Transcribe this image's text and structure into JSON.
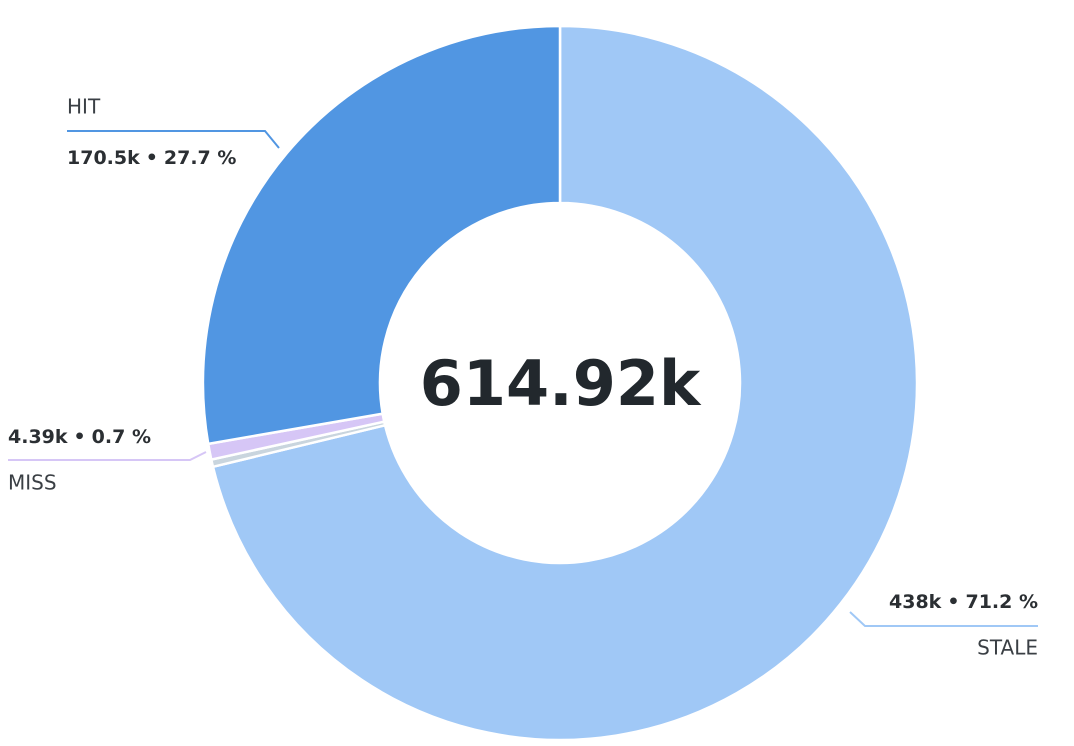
{
  "chart_data": {
    "type": "donut",
    "categories": [
      "STALE",
      null,
      "MISS",
      "HIT"
    ],
    "values": [
      438000,
      2030,
      4390,
      170500
    ],
    "value_labels": [
      "438k",
      null,
      "4.39k",
      "170.5k"
    ],
    "percents": [
      71.2,
      null,
      0.7,
      27.7
    ],
    "percent_labels": [
      "71.2 %",
      null,
      "0.7 %",
      "27.7 %"
    ],
    "separator": "•",
    "colors": [
      "#a0c8f6",
      "#c9d5de",
      "#d6c6f6",
      "#5196e2"
    ],
    "total": {
      "value": 614920,
      "label": "614.92k"
    }
  }
}
